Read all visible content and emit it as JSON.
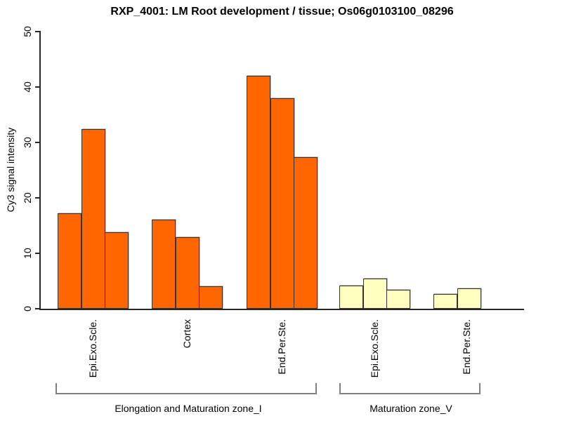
{
  "title": "RXP_4001: LM Root development / tissue; Os06g0103100_08296",
  "chart_data": {
    "type": "bar",
    "title": "RXP_4001: LM Root development / tissue; Os06g0103100_08296",
    "xlabel": "",
    "ylabel": "Cy3 signal intensity",
    "ylim": [
      0,
      50
    ],
    "yticks": [
      0,
      10,
      20,
      30,
      40,
      50
    ],
    "grid": false,
    "legend": "none",
    "groups": [
      {
        "tissue": "Epi.Exo.Scle.",
        "zone": "Elongation and Maturation zone_I",
        "values": [
          17.2,
          32.4,
          13.8
        ],
        "fill": "#FF6600"
      },
      {
        "tissue": "Cortex",
        "zone": "Elongation and Maturation zone_I",
        "values": [
          16.1,
          12.9,
          4.1
        ],
        "fill": "#FF6600"
      },
      {
        "tissue": "End.Per.Ste.",
        "zone": "Elongation and Maturation zone_I",
        "values": [
          42.0,
          38.0,
          27.4
        ],
        "fill": "#FF6600"
      },
      {
        "tissue": "Epi.Exo.Scle.",
        "zone": "Maturation zone_V",
        "values": [
          4.2,
          5.5,
          3.4
        ],
        "fill": "#FFFFBF"
      },
      {
        "tissue": "End.Per.Ste.",
        "zone": "Maturation zone_V",
        "values": [
          2.6,
          3.7
        ],
        "fill": "#FFFFBF"
      }
    ],
    "zone_brackets": [
      {
        "label": "Elongation and Maturation zone_I",
        "group_indexes": [
          0,
          1,
          2
        ]
      },
      {
        "label": "Maturation zone_V",
        "group_indexes": [
          3,
          4
        ]
      }
    ],
    "colors": {
      "orange_fill": "#FF6600",
      "yellow_fill": "#FFFFBF",
      "bar_border": "#333333",
      "axis": "#262626",
      "bracket": "#808080",
      "text": "#000000",
      "background": "#FFFFFF"
    }
  }
}
